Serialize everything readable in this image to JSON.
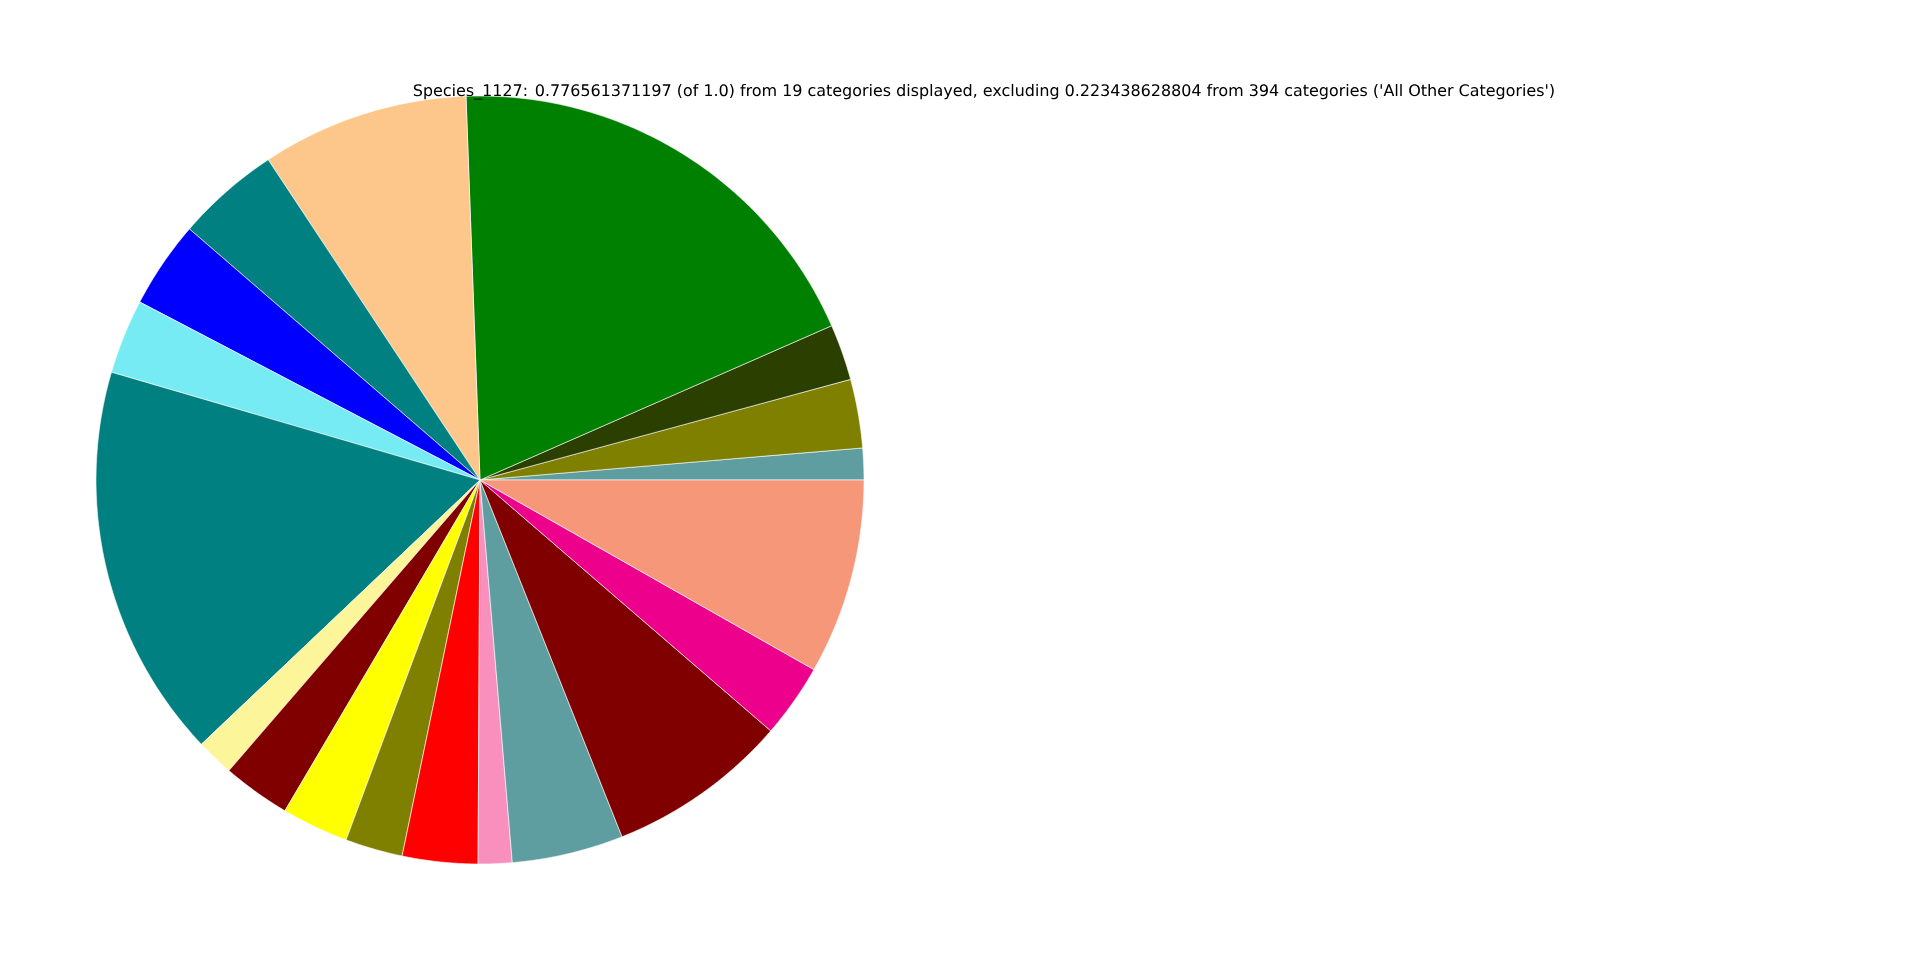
{
  "chart_data": {
    "type": "pie",
    "title": "Species_1127: 0.776561371197 (of 1.0) from 19 categories displayed, excluding 0.223438628804 from 394 categories ('All Other Categories')",
    "categories": [
      null,
      null,
      null,
      null,
      null,
      null,
      null,
      null,
      null,
      null,
      null,
      null,
      null,
      null,
      null,
      null,
      null,
      null,
      null
    ],
    "values": [
      1.33,
      2.89,
      2.36,
      19.0,
      8.72,
      4.36,
      3.67,
      3.14,
      16.61,
      1.58,
      2.86,
      2.81,
      2.42,
      3.17,
      1.42,
      4.69,
      7.64,
      3.11,
      8.22
    ],
    "colors": [
      "#5f9ea0",
      "#808000",
      "#2b3f00",
      "#008000",
      "#fdc68a",
      "#008080",
      "#0000ff",
      "#76ebf4",
      "#008080",
      "#fdf59a",
      "#800000",
      "#ffff00",
      "#808000",
      "#ff0000",
      "#f98fbd",
      "#5f9ea0",
      "#800000",
      "#ec008c",
      "#f7977a"
    ]
  }
}
